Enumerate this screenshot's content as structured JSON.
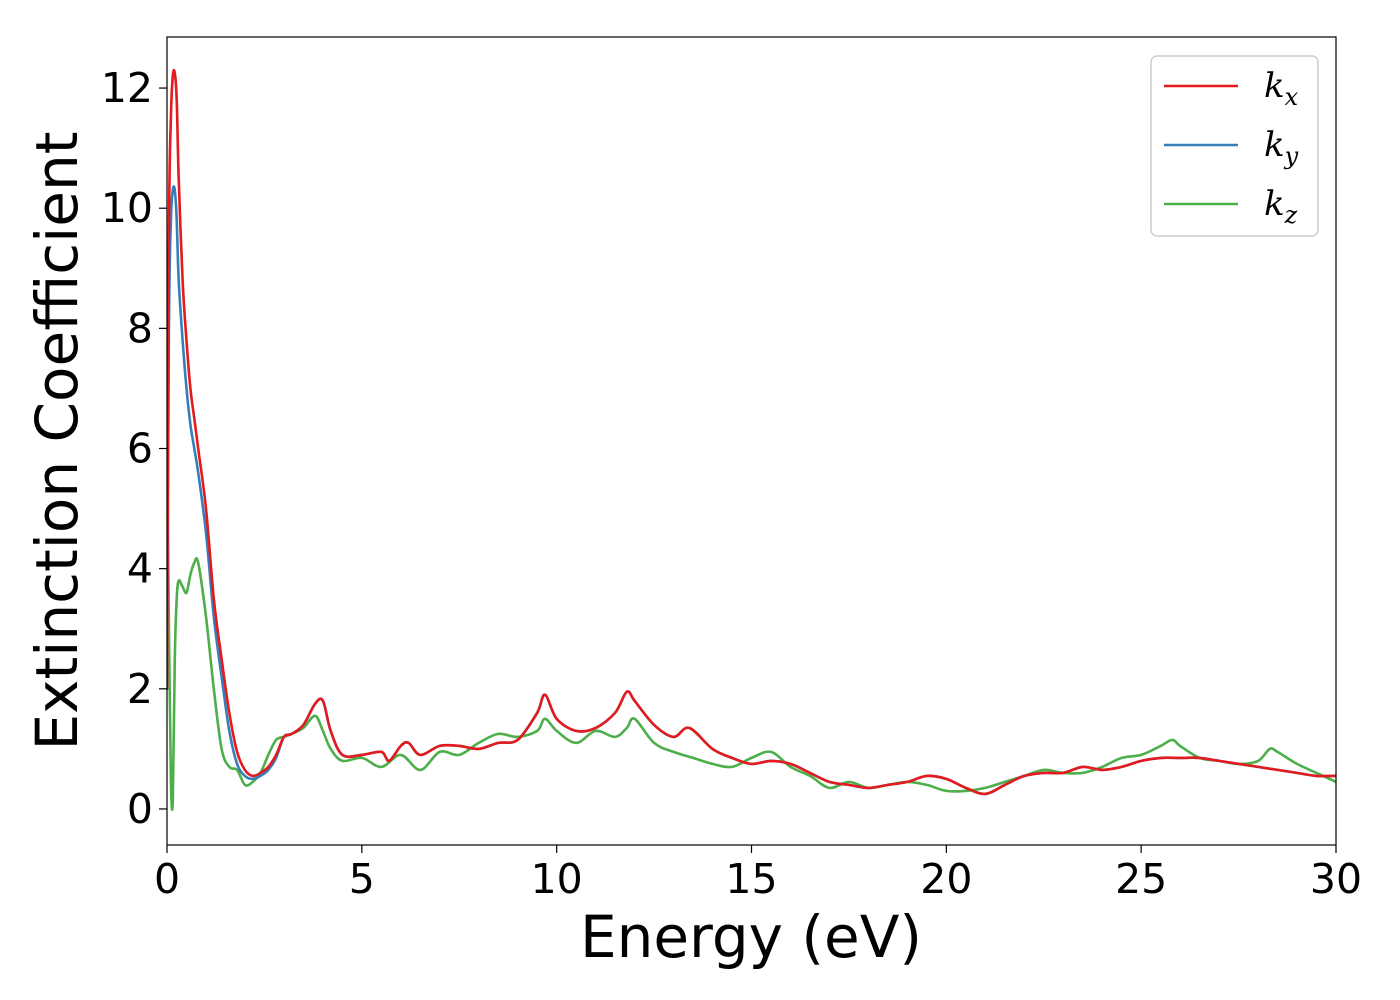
{
  "chart_data": {
    "type": "line",
    "title": "",
    "xlabel": "Energy (eV)",
    "ylabel": "Extinction Coefficient",
    "xlim": [
      0,
      30
    ],
    "ylim": [
      -0.6,
      12.85
    ],
    "xticks": [
      0,
      5,
      10,
      15,
      20,
      25,
      30
    ],
    "yticks": [
      0,
      2,
      4,
      6,
      8,
      10,
      12
    ],
    "grid": false,
    "legend_position": "top-right",
    "series": [
      {
        "name": "k",
        "subscript": "x",
        "color": "#e41a1c",
        "x": [
          0,
          0.05,
          0.1,
          0.15,
          0.2,
          0.25,
          0.3,
          0.4,
          0.5,
          0.6,
          0.7,
          0.8,
          1.0,
          1.2,
          1.4,
          1.6,
          1.8,
          2.0,
          2.2,
          2.4,
          2.6,
          2.8,
          3.0,
          3.2,
          3.5,
          3.8,
          4.0,
          4.2,
          4.5,
          5.0,
          5.5,
          5.7,
          6.0,
          6.2,
          6.5,
          7.0,
          7.5,
          8.0,
          8.5,
          9.0,
          9.5,
          9.7,
          10.0,
          10.5,
          11.0,
          11.5,
          11.8,
          12.0,
          12.5,
          13.0,
          13.4,
          14.0,
          14.5,
          15.0,
          15.5,
          16.0,
          16.5,
          17.0,
          17.5,
          18.0,
          18.5,
          19.0,
          19.5,
          20.0,
          20.5,
          21.0,
          21.5,
          22.0,
          22.5,
          23.0,
          23.5,
          24.0,
          24.5,
          25.0,
          25.5,
          26.0,
          26.5,
          27.0,
          27.5,
          28.0,
          28.5,
          29.0,
          29.5,
          30.0
        ],
        "y": [
          2.0,
          9.5,
          11.5,
          12.2,
          12.25,
          11.8,
          10.5,
          8.8,
          7.8,
          7.0,
          6.5,
          6.0,
          5.0,
          3.5,
          2.5,
          1.6,
          0.95,
          0.65,
          0.55,
          0.6,
          0.7,
          0.9,
          1.2,
          1.25,
          1.4,
          1.75,
          1.8,
          1.3,
          0.9,
          0.9,
          0.95,
          0.8,
          1.05,
          1.1,
          0.9,
          1.05,
          1.05,
          1.0,
          1.1,
          1.15,
          1.6,
          1.9,
          1.5,
          1.3,
          1.35,
          1.6,
          1.95,
          1.8,
          1.4,
          1.2,
          1.35,
          1.0,
          0.85,
          0.75,
          0.8,
          0.75,
          0.6,
          0.45,
          0.4,
          0.35,
          0.4,
          0.45,
          0.55,
          0.5,
          0.35,
          0.25,
          0.4,
          0.55,
          0.6,
          0.6,
          0.7,
          0.65,
          0.7,
          0.8,
          0.85,
          0.85,
          0.85,
          0.8,
          0.75,
          0.7,
          0.65,
          0.6,
          0.55,
          0.55
        ]
      },
      {
        "name": "k",
        "subscript": "y",
        "color": "#377eb8",
        "x": [
          0,
          0.05,
          0.1,
          0.15,
          0.2,
          0.25,
          0.3,
          0.4,
          0.5,
          0.6,
          0.7,
          0.8,
          1.0,
          1.2,
          1.4,
          1.6,
          1.8,
          2.0,
          2.2,
          2.4,
          2.6,
          2.8,
          3.0,
          3.2,
          3.5,
          3.8,
          4.0,
          4.2,
          4.5,
          5.0,
          5.5,
          5.7,
          6.0,
          6.2,
          6.5,
          7.0,
          7.5,
          8.0,
          8.5,
          9.0,
          9.5,
          9.7,
          10.0,
          10.5,
          11.0,
          11.5,
          11.8,
          12.0,
          12.5,
          13.0,
          13.4,
          14.0,
          14.5,
          15.0,
          15.5,
          16.0,
          16.5,
          17.0,
          17.5,
          18.0,
          18.5,
          19.0,
          19.5,
          20.0,
          20.5,
          21.0,
          21.5,
          22.0,
          22.5,
          23.0,
          23.5,
          24.0,
          24.5,
          25.0,
          25.5,
          26.0,
          26.5,
          27.0,
          27.5,
          28.0,
          28.5,
          29.0,
          29.5,
          30.0
        ],
        "y": [
          2.0,
          8.0,
          9.8,
          10.3,
          10.3,
          9.8,
          8.8,
          7.8,
          7.0,
          6.4,
          6.0,
          5.6,
          4.6,
          3.2,
          2.2,
          1.3,
          0.75,
          0.55,
          0.5,
          0.55,
          0.65,
          0.85,
          1.2,
          1.25,
          1.4,
          1.75,
          1.8,
          1.3,
          0.9,
          0.9,
          0.95,
          0.8,
          1.05,
          1.1,
          0.9,
          1.05,
          1.05,
          1.0,
          1.1,
          1.15,
          1.6,
          1.9,
          1.5,
          1.3,
          1.35,
          1.6,
          1.95,
          1.8,
          1.4,
          1.2,
          1.35,
          1.0,
          0.85,
          0.75,
          0.8,
          0.75,
          0.6,
          0.45,
          0.4,
          0.35,
          0.4,
          0.45,
          0.55,
          0.5,
          0.35,
          0.25,
          0.4,
          0.55,
          0.6,
          0.6,
          0.7,
          0.65,
          0.7,
          0.8,
          0.85,
          0.85,
          0.85,
          0.8,
          0.75,
          0.7,
          0.65,
          0.6,
          0.55,
          0.55
        ]
      },
      {
        "name": "k",
        "subscript": "z",
        "color": "#4daf4a",
        "x": [
          0,
          0.05,
          0.1,
          0.15,
          0.2,
          0.25,
          0.3,
          0.4,
          0.5,
          0.6,
          0.7,
          0.8,
          1.0,
          1.2,
          1.4,
          1.6,
          1.8,
          2.0,
          2.2,
          2.4,
          2.6,
          2.8,
          3.0,
          3.2,
          3.5,
          3.8,
          4.0,
          4.2,
          4.5,
          5.0,
          5.5,
          6.0,
          6.5,
          7.0,
          7.5,
          8.0,
          8.5,
          9.0,
          9.5,
          9.7,
          10.0,
          10.5,
          11.0,
          11.5,
          11.8,
          12.0,
          12.5,
          13.0,
          13.5,
          14.0,
          14.5,
          15.0,
          15.5,
          16.0,
          16.5,
          17.0,
          17.5,
          18.0,
          18.5,
          19.0,
          19.5,
          20.0,
          20.5,
          21.0,
          21.5,
          22.0,
          22.5,
          23.0,
          23.5,
          24.0,
          24.5,
          25.0,
          25.5,
          25.8,
          26.0,
          26.5,
          27.0,
          27.5,
          28.0,
          28.3,
          28.5,
          29.0,
          29.5,
          30.0
        ],
        "y": [
          6.5,
          3.0,
          0.5,
          0.15,
          2.5,
          3.5,
          3.8,
          3.7,
          3.6,
          3.9,
          4.1,
          4.1,
          3.2,
          2.0,
          1.0,
          0.7,
          0.65,
          0.4,
          0.45,
          0.6,
          0.9,
          1.15,
          1.2,
          1.25,
          1.35,
          1.55,
          1.3,
          1.0,
          0.8,
          0.85,
          0.7,
          0.9,
          0.65,
          0.95,
          0.9,
          1.1,
          1.25,
          1.2,
          1.3,
          1.5,
          1.3,
          1.1,
          1.3,
          1.2,
          1.35,
          1.5,
          1.1,
          0.95,
          0.85,
          0.75,
          0.7,
          0.85,
          0.95,
          0.7,
          0.55,
          0.35,
          0.45,
          0.35,
          0.4,
          0.45,
          0.4,
          0.3,
          0.3,
          0.35,
          0.45,
          0.55,
          0.65,
          0.6,
          0.6,
          0.7,
          0.85,
          0.9,
          1.05,
          1.15,
          1.05,
          0.85,
          0.8,
          0.75,
          0.8,
          1.0,
          0.95,
          0.75,
          0.6,
          0.45
        ]
      }
    ]
  }
}
